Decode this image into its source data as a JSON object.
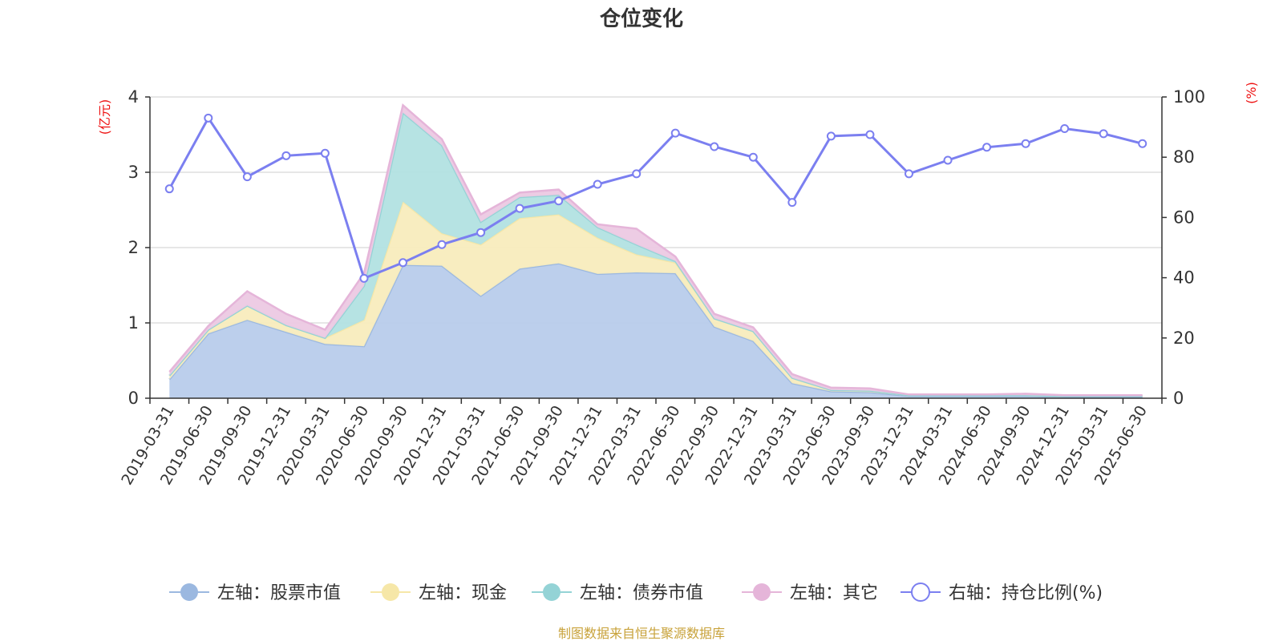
{
  "chart_data": {
    "type": "area",
    "title": "仓位变化",
    "left_unit": "(亿元)",
    "right_unit": "(%)",
    "ylim_left": [
      0,
      4
    ],
    "ylim_right": [
      0,
      100
    ],
    "left_ticks": [
      "0",
      "1",
      "2",
      "3",
      "4"
    ],
    "right_ticks": [
      "0",
      "20",
      "40",
      "60",
      "80",
      "100"
    ],
    "grid": true,
    "legend_position": "bottom",
    "categories": [
      "2019-03-31",
      "2019-06-30",
      "2019-09-30",
      "2019-12-31",
      "2020-03-31",
      "2020-06-30",
      "2020-09-30",
      "2020-12-31",
      "2021-03-31",
      "2021-06-30",
      "2021-09-30",
      "2021-12-31",
      "2022-03-31",
      "2022-06-30",
      "2022-09-30",
      "2022-12-31",
      "2023-03-31",
      "2023-06-30",
      "2023-09-30",
      "2023-12-31",
      "2024-03-31",
      "2024-06-30",
      "2024-09-30",
      "2024-12-31",
      "2025-03-31",
      "2025-06-30"
    ],
    "series": [
      {
        "name": "左轴：股票市值",
        "axis": "left",
        "kind": "stack",
        "color": "#9bb8e0",
        "fill": "#b8cceb",
        "values": [
          0.25,
          0.86,
          1.04,
          0.88,
          0.72,
          0.69,
          1.77,
          1.76,
          1.36,
          1.72,
          1.79,
          1.65,
          1.67,
          1.66,
          0.95,
          0.76,
          0.2,
          0.09,
          0.08,
          0.03,
          0.03,
          0.03,
          0.03,
          0.02,
          0.02,
          0.02
        ]
      },
      {
        "name": "左轴：现金",
        "axis": "left",
        "kind": "stack",
        "color": "#f6e7a8",
        "fill": "#f8ecbd",
        "values": [
          0.05,
          0.05,
          0.19,
          0.09,
          0.08,
          0.35,
          0.84,
          0.43,
          0.68,
          0.67,
          0.65,
          0.48,
          0.24,
          0.14,
          0.11,
          0.13,
          0.07,
          0.02,
          0.02,
          0.01,
          0.01,
          0.01,
          0.01,
          0.01,
          0.01,
          0.01
        ]
      },
      {
        "name": "左轴：债券市值",
        "axis": "left",
        "kind": "stack",
        "color": "#94d3d6",
        "fill": "#b2e1e2",
        "values": [
          0,
          0,
          0,
          0,
          0,
          0.45,
          1.18,
          1.17,
          0.3,
          0.28,
          0.26,
          0.14,
          0.13,
          0.02,
          0,
          0,
          0,
          0,
          0,
          0,
          0,
          0,
          0,
          0,
          0,
          0
        ]
      },
      {
        "name": "左轴：其它",
        "axis": "left",
        "kind": "stack",
        "color": "#e5b5d9",
        "fill": "#ecc9e3",
        "values": [
          0.05,
          0.05,
          0.19,
          0.15,
          0.11,
          0.17,
          0.1,
          0.08,
          0.1,
          0.06,
          0.07,
          0.04,
          0.21,
          0.06,
          0.06,
          0.05,
          0.05,
          0.03,
          0.03,
          0.01,
          0.01,
          0.01,
          0.02,
          0.01,
          0.01,
          0.01
        ]
      },
      {
        "name": "右轴：持仓比例(%)",
        "axis": "right",
        "kind": "line",
        "color": "#7b7ff0",
        "values": [
          69.5,
          93.0,
          73.5,
          80.5,
          81.3,
          39.8,
          45.0,
          51.0,
          55.0,
          63.0,
          65.5,
          71.0,
          74.5,
          88.0,
          83.5,
          80.0,
          65.0,
          87.0,
          87.5,
          74.5,
          79.0,
          83.3,
          84.5,
          89.5,
          87.8,
          84.5
        ]
      }
    ],
    "source_note": "制图数据来自恒生聚源数据库"
  }
}
